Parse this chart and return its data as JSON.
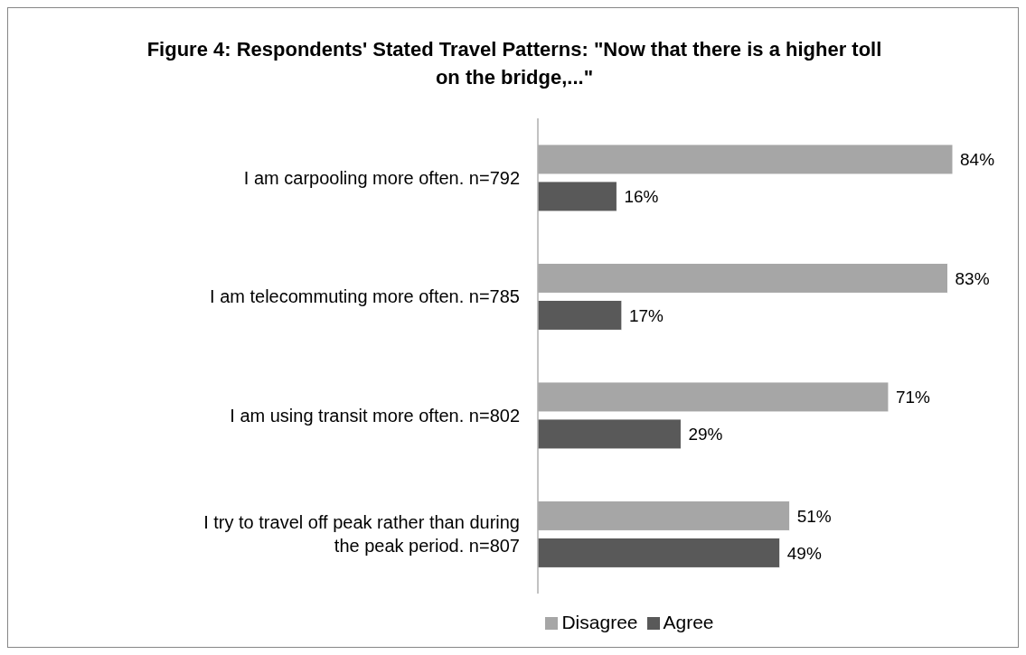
{
  "chart_data": {
    "type": "bar",
    "orientation": "horizontal",
    "title": "Figure 4: Respondents' Stated Travel Patterns: \"Now that there is a higher toll on the bridge,...\"",
    "categories": [
      "I am carpooling more often. n=792",
      "I am telecommuting more often. n=785",
      "I am using transit more often. n=802",
      "I try to travel off peak rather than during the peak period. n=807"
    ],
    "series": [
      {
        "name": "Disagree",
        "color": "#a6a6a6",
        "values": [
          84,
          83,
          71,
          51
        ],
        "value_labels": [
          "84%",
          "83%",
          "71%",
          "51%"
        ]
      },
      {
        "name": "Agree",
        "color": "#595959",
        "values": [
          16,
          17,
          29,
          49
        ],
        "value_labels": [
          "16%",
          "17%",
          "29%",
          "49%"
        ]
      }
    ],
    "legend": "bottom",
    "grid": false
  }
}
